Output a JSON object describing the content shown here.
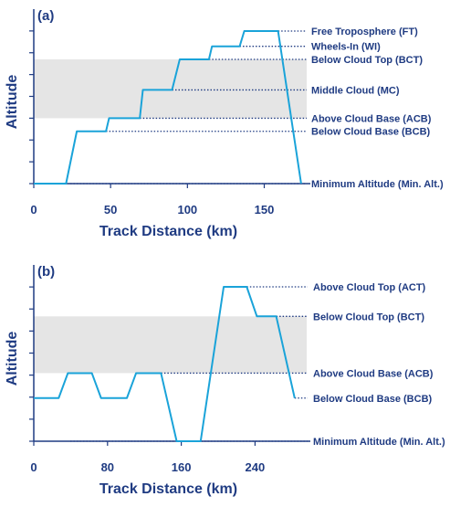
{
  "colors": {
    "axis": "#1f3b82",
    "line": "#1aa3d9",
    "cloud_band": "#e5e5e5",
    "text": "#1f3b82"
  },
  "chart_data": [
    {
      "type": "line",
      "panel_label": "(a)",
      "xlabel": "Track Distance (km)",
      "ylabel": "Altitude",
      "xlim": [
        0,
        180
      ],
      "x_ticks": [
        0,
        50,
        100,
        150
      ],
      "x_tick_labels": [
        "0",
        "50",
        "100",
        "150"
      ],
      "y_tick_count": 8,
      "grid": false,
      "cloud_band": {
        "from_level": "Above Cloud Base (ACB)",
        "to_level": "Below Cloud Top (BCT)"
      },
      "levels": [
        {
          "name": "Free Troposphere (FT)",
          "rank": 7.0
        },
        {
          "name": "Wheels-In (WI)",
          "rank": 6.3
        },
        {
          "name": "Below Cloud Top (BCT)",
          "rank": 5.7
        },
        {
          "name": "Middle Cloud (MC)",
          "rank": 4.3
        },
        {
          "name": "Above Cloud Base (ACB)",
          "rank": 3.0
        },
        {
          "name": "Below Cloud Base (BCB)",
          "rank": 2.4
        },
        {
          "name": "Minimum Altitude (Min. Alt.)",
          "rank": 0.0
        }
      ],
      "series": [
        {
          "x": [
            0,
            21,
            28,
            47,
            49,
            69,
            71,
            90,
            95,
            114,
            116,
            134,
            137,
            159,
            174
          ],
          "level": [
            "Minimum Altitude (Min. Alt.)",
            "Minimum Altitude (Min. Alt.)",
            "Below Cloud Base (BCB)",
            "Below Cloud Base (BCB)",
            "Above Cloud Base (ACB)",
            "Above Cloud Base (ACB)",
            "Middle Cloud (MC)",
            "Middle Cloud (MC)",
            "Below Cloud Top (BCT)",
            "Below Cloud Top (BCT)",
            "Wheels-In (WI)",
            "Wheels-In (WI)",
            "Free Troposphere (FT)",
            "Free Troposphere (FT)",
            "Minimum Altitude (Min. Alt.)"
          ]
        }
      ]
    },
    {
      "type": "line",
      "panel_label": "(b)",
      "xlabel": "Track Distance (km)",
      "ylabel": "Altitude",
      "xlim": [
        0,
        300
      ],
      "x_ticks": [
        0,
        80,
        160,
        240
      ],
      "x_tick_labels": [
        "0",
        "80",
        "160",
        "240"
      ],
      "y_tick_count": 8,
      "grid": false,
      "cloud_band": {
        "from_level": "Above Cloud Base (ACB)",
        "to_level": "Below Cloud Top (BCT)"
      },
      "levels": [
        {
          "name": "Above Cloud Top (ACT)",
          "rank": 6.8
        },
        {
          "name": "Below Cloud Top (BCT)",
          "rank": 5.5
        },
        {
          "name": "Above Cloud Base (ACB)",
          "rank": 3.0
        },
        {
          "name": "Below Cloud Base (BCB)",
          "rank": 1.9
        },
        {
          "name": "Minimum Altitude (Min. Alt.)",
          "rank": 0.0
        }
      ],
      "series": [
        {
          "x": [
            0,
            27,
            37,
            63,
            73,
            101,
            111,
            138,
            155,
            181,
            206,
            231,
            242,
            263,
            283
          ],
          "level": [
            "Below Cloud Base (BCB)",
            "Below Cloud Base (BCB)",
            "Above Cloud Base (ACB)",
            "Above Cloud Base (ACB)",
            "Below Cloud Base (BCB)",
            "Below Cloud Base (BCB)",
            "Above Cloud Base (ACB)",
            "Above Cloud Base (ACB)",
            "Minimum Altitude (Min. Alt.)",
            "Minimum Altitude (Min. Alt.)",
            "Above Cloud Top (ACT)",
            "Above Cloud Top (ACT)",
            "Below Cloud Top (BCT)",
            "Below Cloud Top (BCT)",
            "Below Cloud Base (BCB)"
          ]
        }
      ]
    }
  ]
}
